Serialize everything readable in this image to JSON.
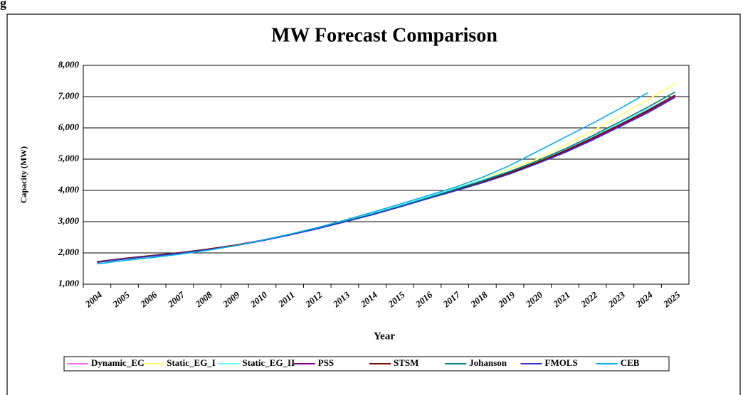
{
  "corner_label": "g",
  "chart_data": {
    "type": "line",
    "title": "MW Forecast Comparison",
    "x_label": "Year",
    "y_label": "Capacity (MW)",
    "categories": [
      "2004",
      "2005",
      "2006",
      "2007",
      "2008",
      "2009",
      "2010",
      "2011",
      "2012",
      "2013",
      "2014",
      "2015",
      "2016",
      "2017",
      "2018",
      "2019",
      "2020",
      "2021",
      "2022",
      "2023",
      "2024",
      "2025"
    ],
    "ylim": [
      1000,
      8000
    ],
    "yticks": [
      {
        "value": 1000,
        "label": "1,000"
      },
      {
        "value": 2000,
        "label": "2,000"
      },
      {
        "value": 3000,
        "label": "3,000"
      },
      {
        "value": 4000,
        "label": "4,000"
      },
      {
        "value": 5000,
        "label": "5,000"
      },
      {
        "value": 6000,
        "label": "6,000"
      },
      {
        "value": 7000,
        "label": "7,000"
      },
      {
        "value": 8000,
        "label": "8,000"
      }
    ],
    "grid": true,
    "legend": "bottom",
    "series": [
      {
        "name": "Dynamic_EG",
        "color": "#ff66ff",
        "values": [
          1700,
          1810,
          1900,
          1990,
          2100,
          2230,
          2400,
          2580,
          2780,
          3000,
          3230,
          3480,
          3740,
          3990,
          4250,
          4540,
          4870,
          5230,
          5630,
          6060,
          6500,
          7000
        ]
      },
      {
        "name": "Static_EG_I",
        "color": "#ffff66",
        "values": [
          1650,
          1760,
          1850,
          1960,
          2080,
          2230,
          2410,
          2600,
          2810,
          3050,
          3300,
          3560,
          3820,
          4100,
          4400,
          4700,
          5000,
          5450,
          5900,
          6400,
          6900,
          7420
        ]
      },
      {
        "name": "Static_EG_II",
        "color": "#66ffff",
        "values": [
          1650,
          1760,
          1850,
          1960,
          2080,
          2230,
          2410,
          2600,
          2810,
          3040,
          3280,
          3530,
          3790,
          4060,
          4340,
          4620,
          4920,
          5300,
          5720,
          6160,
          6600,
          7050
        ]
      },
      {
        "name": "PSS",
        "color": "#800080",
        "values": [
          1700,
          1810,
          1900,
          1990,
          2100,
          2230,
          2400,
          2580,
          2780,
          3000,
          3230,
          3480,
          3740,
          3990,
          4260,
          4550,
          4880,
          5240,
          5640,
          6070,
          6520,
          7000
        ]
      },
      {
        "name": "STSM",
        "color": "#800000",
        "values": [
          1720,
          1830,
          1920,
          2010,
          2120,
          2250,
          2410,
          2590,
          2790,
          3000,
          3230,
          3480,
          3740,
          4000,
          4270,
          4570,
          4900,
          5270,
          5680,
          6110,
          6560,
          7050
        ]
      },
      {
        "name": "Johanson",
        "color": "#008080",
        "values": [
          1700,
          1810,
          1900,
          1990,
          2100,
          2230,
          2400,
          2580,
          2790,
          3010,
          3240,
          3490,
          3760,
          4030,
          4310,
          4610,
          4950,
          5330,
          5750,
          6200,
          6660,
          7150
        ]
      },
      {
        "name": "FMOLS",
        "color": "#3333cc",
        "values": [
          1700,
          1810,
          1900,
          1990,
          2100,
          2230,
          2390,
          2570,
          2770,
          2990,
          3220,
          3470,
          3730,
          3980,
          4240,
          4530,
          4860,
          5210,
          5610,
          6040,
          6480,
          6980
        ]
      },
      {
        "name": "CEB",
        "color": "#00b0f0",
        "values": [
          1650,
          1760,
          1850,
          1960,
          2080,
          2230,
          2410,
          2600,
          2810,
          3050,
          3300,
          3560,
          3830,
          4100,
          4420,
          4800,
          5250,
          5700,
          6150,
          6620,
          7120,
          null
        ]
      }
    ]
  }
}
